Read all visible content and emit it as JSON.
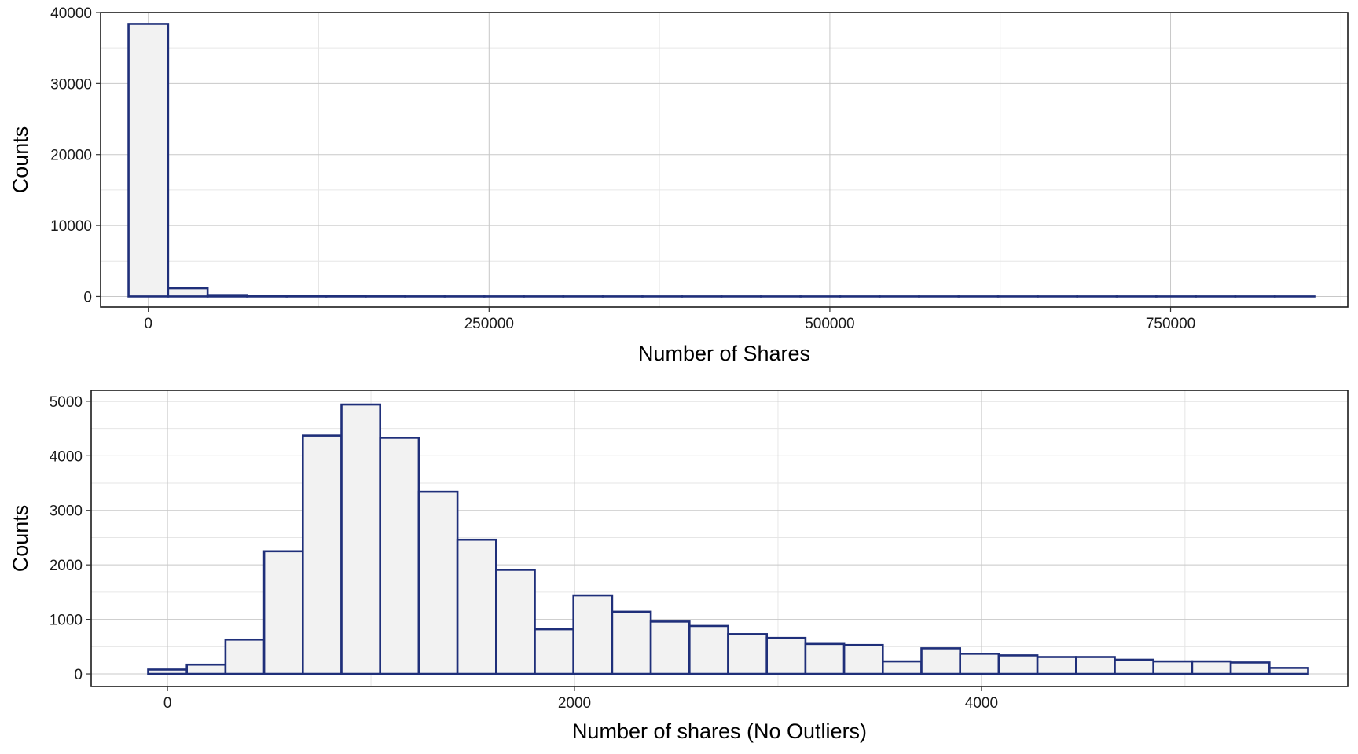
{
  "chart_data": [
    {
      "type": "bar",
      "xlabel": "Number of Shares",
      "ylabel": "Counts",
      "xlim": [
        -35000,
        880000
      ],
      "ylim": [
        -1500,
        40000
      ],
      "x_ticks": [
        0,
        250000,
        500000,
        750000
      ],
      "x_tick_labels": [
        "0",
        "250000",
        "500000",
        "750000"
      ],
      "y_ticks": [
        0,
        10000,
        20000,
        30000,
        40000
      ],
      "y_tick_labels": [
        "0",
        "10000",
        "20000",
        "30000",
        "40000"
      ],
      "grid": true,
      "bin_width": 29000,
      "bin_start": -14500,
      "values": [
        38400,
        1150,
        200,
        60,
        30,
        20,
        12,
        8,
        6,
        5,
        4,
        3,
        3,
        2,
        2,
        2,
        1,
        1,
        1,
        1,
        1,
        1,
        1,
        1,
        1,
        1,
        1,
        1,
        1,
        1
      ],
      "fill_color": "#f2f2f2",
      "edge_color": "#1f2f7a"
    },
    {
      "type": "bar",
      "xlabel": "Number of shares (No Outliers)",
      "ylabel": "Counts",
      "xlim": [
        -375,
        5800
      ],
      "ylim": [
        -230,
        5200
      ],
      "x_ticks": [
        0,
        2000,
        4000
      ],
      "x_tick_labels": [
        "0",
        "2000",
        "4000"
      ],
      "y_ticks": [
        0,
        1000,
        2000,
        3000,
        4000,
        5000
      ],
      "y_tick_labels": [
        "0",
        "1000",
        "2000",
        "3000",
        "4000",
        "5000"
      ],
      "grid": true,
      "bin_width": 190,
      "bin_start": -95,
      "values": [
        80,
        170,
        630,
        2250,
        4370,
        4940,
        4330,
        3340,
        2460,
        1910,
        820,
        1440,
        1140,
        960,
        880,
        730,
        660,
        550,
        530,
        230,
        470,
        370,
        340,
        310,
        310,
        260,
        230,
        230,
        210,
        110
      ],
      "fill_color": "#f2f2f2",
      "edge_color": "#1f2f7a"
    }
  ]
}
